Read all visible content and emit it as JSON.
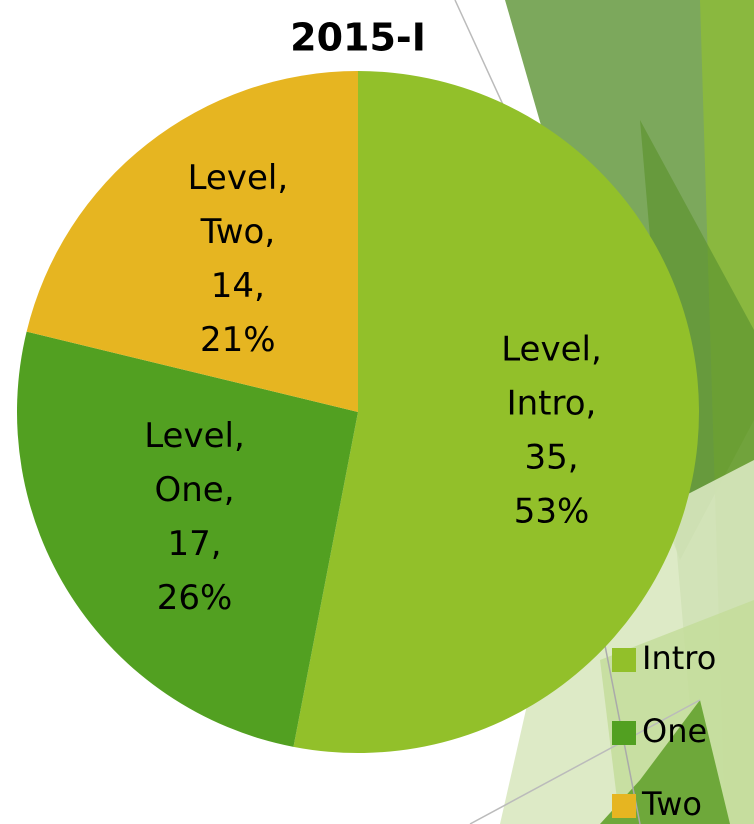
{
  "chart_data": {
    "type": "pie",
    "title": "2015-I",
    "categories": [
      "Intro",
      "One",
      "Two"
    ],
    "series": [
      {
        "name": "Level",
        "values": [
          35,
          17,
          14
        ],
        "colors": [
          "#92c02a",
          "#52a021",
          "#e6b521"
        ]
      }
    ],
    "percent_labels": [
      "53%",
      "26%",
      "21%"
    ],
    "label_separator": ",",
    "legend": "right"
  }
}
